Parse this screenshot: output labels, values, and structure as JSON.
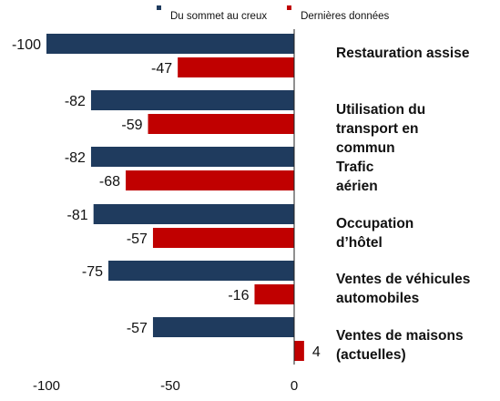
{
  "chart_data": {
    "type": "bar",
    "orientation": "horizontal",
    "categories": [
      "Restauration assise",
      "Utilisation du transport en commun",
      "Trafic aérien",
      "Occupation d’hôtel",
      "Ventes de véhicules automobiles",
      "Ventes de maisons (actuelles)"
    ],
    "category_lines": [
      [
        "Restauration assise"
      ],
      [
        "Utilisation du",
        "transport en",
        "commun"
      ],
      [
        "Trafic",
        "aérien"
      ],
      [
        "Occupation",
        "d’hôtel"
      ],
      [
        "Ventes de véhicules",
        "automobiles"
      ],
      [
        "Ventes de maisons",
        "(actuelles)"
      ]
    ],
    "series": [
      {
        "name": "Du sommet au creux",
        "color": "#1f3b5e",
        "values": [
          -100,
          -82,
          -82,
          -81,
          -75,
          -57
        ]
      },
      {
        "name": "Dernières données",
        "color": "#c00000",
        "values": [
          -47,
          -59,
          -68,
          -57,
          -16,
          4
        ]
      }
    ],
    "xlim": [
      -100,
      0
    ],
    "xticks": [
      "-100",
      "-50",
      "0"
    ],
    "xtick_values": [
      -100,
      -50,
      0
    ],
    "xlabel": "",
    "ylabel": "",
    "title": "",
    "grid": false,
    "legend_position": "top"
  }
}
